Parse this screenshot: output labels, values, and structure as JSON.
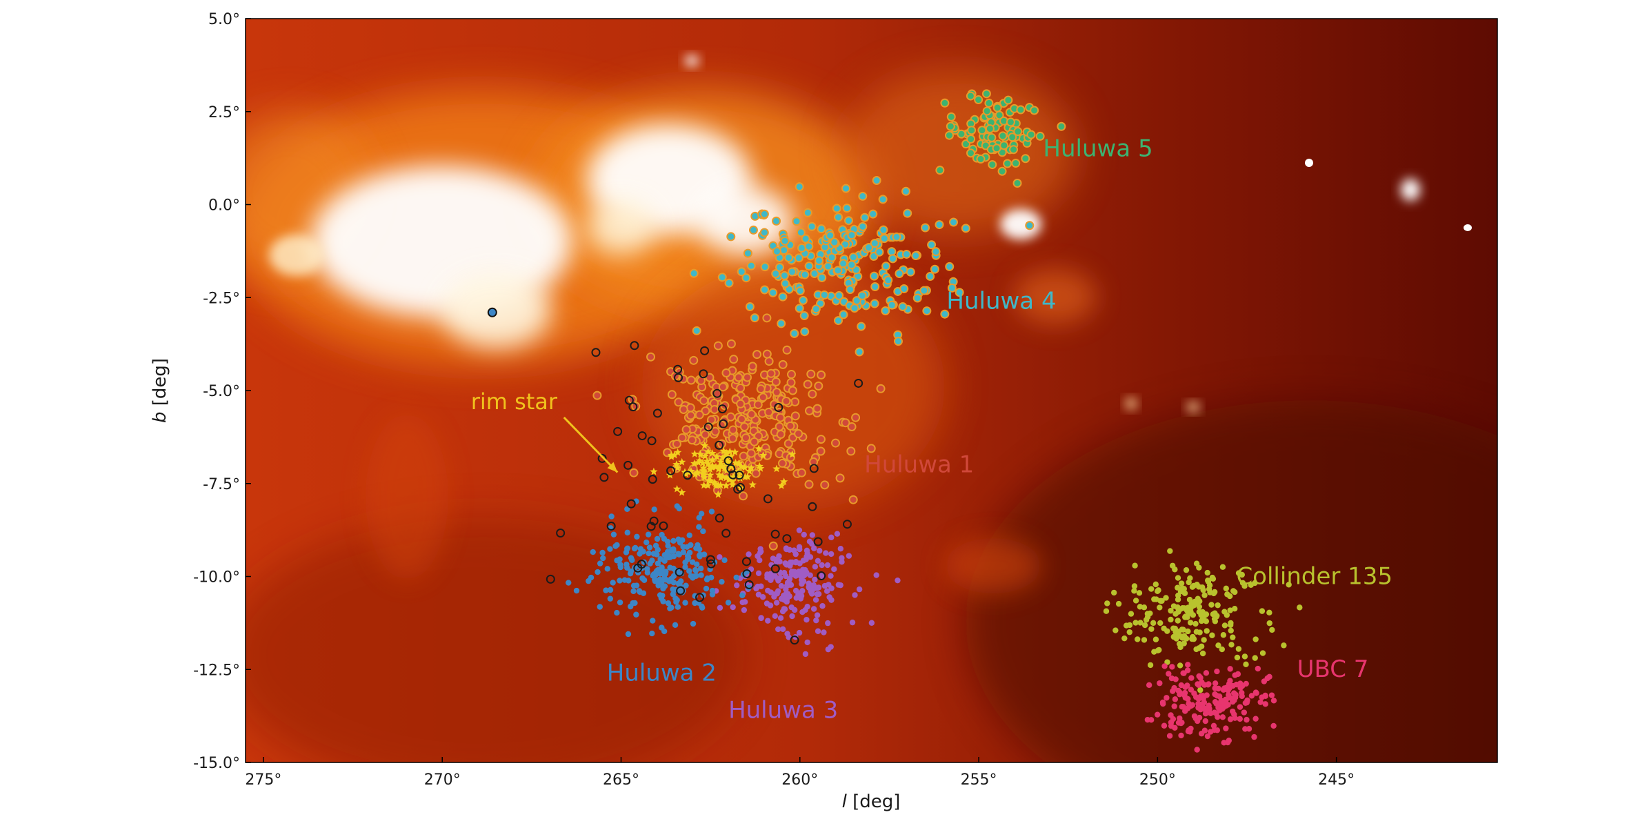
{
  "chart_data": {
    "type": "scatter",
    "title": "",
    "xlabel_italic": "l",
    "xlabel_rest": " [deg]",
    "ylabel_italic": "b",
    "ylabel_rest": " [deg]",
    "xlim": [
      275.5,
      240.5
    ],
    "ylim": [
      -15.0,
      5.0
    ],
    "x_ticks": [
      275,
      270,
      265,
      260,
      255,
      250,
      245
    ],
    "x_tick_labels": [
      "275°",
      "270°",
      "265°",
      "260°",
      "255°",
      "250°",
      "245°"
    ],
    "y_ticks": [
      5.0,
      2.5,
      0.0,
      -2.5,
      -5.0,
      -7.5,
      -10.0,
      -12.5,
      -15.0
    ],
    "y_tick_labels": [
      "5.0°",
      "2.5°",
      "0.0°",
      "-2.5°",
      "-5.0°",
      "-7.5°",
      "-10.0°",
      "-12.5°",
      "-15.0°"
    ],
    "grid": false,
    "background": "dust-emission heat map",
    "series": [
      {
        "name": "Huluwa 1",
        "color": "#d0483a",
        "center": [
          261.5,
          -5.8
        ],
        "spread": [
          2.2,
          1.4
        ],
        "marker": "ringed-dot",
        "label_pos": [
          258.2,
          -7.2
        ]
      },
      {
        "name": "Huluwa 2",
        "color": "#3d86c6",
        "center": [
          263.8,
          -9.9
        ],
        "spread": [
          1.5,
          1.1
        ],
        "marker": "dot",
        "label_pos": [
          265.4,
          -12.8
        ]
      },
      {
        "name": "Huluwa 3",
        "color": "#a05cc4",
        "center": [
          260.2,
          -10.2
        ],
        "spread": [
          1.3,
          1.0
        ],
        "marker": "dot",
        "label_pos": [
          262.0,
          -13.8
        ]
      },
      {
        "name": "Huluwa 4",
        "color": "#3fb8c8",
        "center": [
          258.8,
          -1.6
        ],
        "spread": [
          2.5,
          1.5
        ],
        "marker": "ringed-dot",
        "label_pos": [
          255.9,
          -2.8
        ]
      },
      {
        "name": "Huluwa 5",
        "color": "#3cb371",
        "center": [
          254.6,
          2.0
        ],
        "spread": [
          1.1,
          0.7
        ],
        "marker": "ringed-dot",
        "label_pos": [
          253.2,
          1.3
        ]
      },
      {
        "name": "Collinder 135",
        "color": "#b9c22e",
        "center": [
          249.0,
          -11.0
        ],
        "spread": [
          1.7,
          1.2
        ],
        "marker": "dot",
        "label_pos": [
          247.8,
          -10.2
        ]
      },
      {
        "name": "UBC 7",
        "color": "#e8356e",
        "center": [
          248.5,
          -13.4
        ],
        "spread": [
          1.3,
          0.8
        ],
        "marker": "dot",
        "label_pos": [
          246.1,
          -12.7
        ]
      }
    ],
    "extra_series": [
      {
        "label": "yellow stars",
        "color": "#f2cf1f",
        "center": [
          262.2,
          -7.1
        ],
        "spread": [
          1.1,
          0.5
        ],
        "marker": "star"
      }
    ],
    "annotations": [
      {
        "text": "rim star",
        "color": "#f0c21d",
        "label_pos": [
          269.2,
          -5.5
        ],
        "arrow_to": [
          265.1,
          -7.2
        ]
      }
    ]
  }
}
